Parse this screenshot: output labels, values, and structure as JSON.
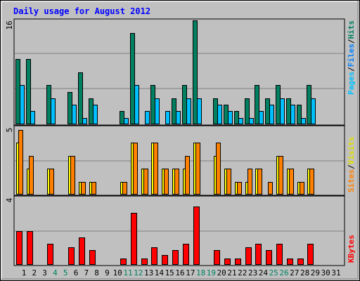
{
  "chart_data": {
    "type": "bar",
    "title": "Daily usage for August 2012",
    "days": [
      "1",
      "2",
      "3",
      "4",
      "5",
      "6",
      "7",
      "8",
      "9",
      "10",
      "11",
      "12",
      "13",
      "14",
      "15",
      "16",
      "17",
      "18",
      "19",
      "20",
      "21",
      "22",
      "23",
      "24",
      "25",
      "26",
      "27",
      "28",
      "29",
      "30",
      "31"
    ],
    "weekend_days": [
      4,
      5,
      11,
      12,
      18,
      19,
      25,
      26
    ],
    "panels": [
      {
        "id": "pages-files-hits",
        "ymax": 16,
        "ymax_label": "16",
        "series": [
          {
            "name": "Hits",
            "color": "#008060",
            "values": [
              10,
              10,
              0,
              6,
              0,
              5,
              8,
              4,
              0,
              0,
              2,
              14,
              0,
              6,
              0,
              4,
              6,
              16,
              0,
              4,
              3,
              2,
              4,
              6,
              4,
              6,
              4,
              3,
              6,
              0,
              0
            ]
          },
          {
            "name": "Files",
            "color": "#0080ff",
            "values": [
              0,
              0,
              0,
              0,
              0,
              0,
              0,
              0,
              0,
              0,
              0,
              0,
              0,
              0,
              0,
              0,
              0,
              0,
              0,
              0,
              0,
              0,
              0,
              0,
              0,
              0,
              0,
              0,
              0,
              0,
              0
            ]
          },
          {
            "name": "Pages",
            "color": "#00c0ff",
            "values": [
              6,
              2,
              0,
              4,
              0,
              3,
              1,
              3,
              0,
              0,
              1,
              6,
              2,
              4,
              2,
              2,
              4,
              4,
              0,
              3,
              2,
              1,
              1,
              2,
              3,
              4,
              3,
              1,
              4,
              0,
              0
            ]
          }
        ]
      },
      {
        "id": "visits-sites",
        "ymax": 5,
        "ymax_label": "5",
        "series": [
          {
            "name": "Visits",
            "color": "#ffff00",
            "values": [
              4,
              2,
              0,
              2,
              0,
              3,
              1,
              1,
              0,
              0,
              1,
              4,
              2,
              4,
              2,
              2,
              2,
              4,
              0,
              3,
              2,
              1,
              1,
              2,
              0,
              3,
              2,
              1,
              2,
              0,
              0
            ]
          },
          {
            "name": "Sites",
            "color": "#ff8000",
            "values": [
              5,
              3,
              0,
              2,
              0,
              3,
              1,
              1,
              0,
              0,
              1,
              4,
              2,
              4,
              2,
              2,
              3,
              4,
              0,
              4,
              2,
              1,
              2,
              2,
              1,
              3,
              2,
              1,
              2,
              0,
              0
            ]
          }
        ]
      },
      {
        "id": "kbytes",
        "ymax": 4,
        "ymax_label": "4",
        "series": [
          {
            "name": "KBytes",
            "color": "#ff0000",
            "values": [
              2.1,
              2.1,
              0,
              1.3,
              0,
              1.1,
              1.7,
              0.9,
              0,
              0,
              0.4,
              3.2,
              0.4,
              1.1,
              0.6,
              0.9,
              1.3,
              3.6,
              0,
              0.9,
              0.4,
              0.4,
              1.1,
              1.3,
              0.9,
              1.3,
              0.4,
              0.4,
              1.3,
              0,
              0
            ]
          }
        ]
      }
    ]
  },
  "legend": {
    "top": {
      "pages": "Pages",
      "files": "Files",
      "hits": "Hits",
      "sep": "/"
    },
    "middle": {
      "sites": "Sites",
      "visits": "Visits",
      "sep": "/"
    },
    "bottom": {
      "kbytes": "KBytes"
    }
  },
  "colors": {
    "background": "#c0c0c0",
    "frame": "#ffffff",
    "grid": "#808080",
    "title": "#0000ff",
    "axis_text": "#000000",
    "weekend_text": "#008060"
  }
}
